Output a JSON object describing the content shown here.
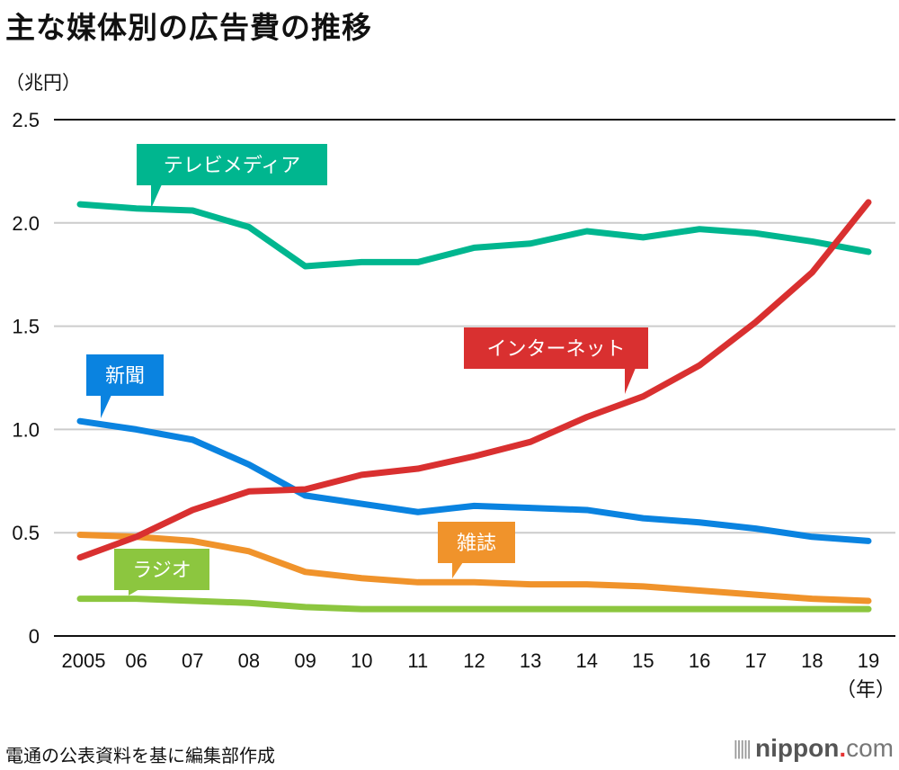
{
  "chart_data": {
    "type": "line",
    "title": "主な媒体別の広告費の推移",
    "ylabel": "（兆円）",
    "xlabel": "（年）",
    "ylim": [
      0,
      2.5
    ],
    "yticks": [
      {
        "value": 0,
        "label": "0"
      },
      {
        "value": 0.5,
        "label": "0.5"
      },
      {
        "value": 1.0,
        "label": "1.0"
      },
      {
        "value": 1.5,
        "label": "1.5"
      },
      {
        "value": 2.0,
        "label": "2.0"
      },
      {
        "value": 2.5,
        "label": "2.5"
      }
    ],
    "grid": true,
    "categories": [
      "2005",
      "06",
      "07",
      "08",
      "09",
      "10",
      "11",
      "12",
      "13",
      "14",
      "15",
      "16",
      "17",
      "18",
      "19"
    ],
    "series": [
      {
        "name": "テレビメディア",
        "color": "#00b68f",
        "values": [
          2.09,
          2.07,
          2.06,
          1.98,
          1.79,
          1.81,
          1.81,
          1.88,
          1.9,
          1.96,
          1.93,
          1.97,
          1.95,
          1.91,
          1.86
        ],
        "label_anchor_index": 1
      },
      {
        "name": "インターネット",
        "color": "#d93030",
        "values": [
          0.38,
          0.48,
          0.61,
          0.7,
          0.71,
          0.78,
          0.81,
          0.87,
          0.94,
          1.06,
          1.16,
          1.31,
          1.52,
          1.76,
          2.1
        ],
        "label_anchor_index": 10
      },
      {
        "name": "新聞",
        "color": "#0a83e0",
        "values": [
          1.04,
          1.0,
          0.95,
          0.83,
          0.68,
          0.64,
          0.6,
          0.63,
          0.62,
          0.61,
          0.57,
          0.55,
          0.52,
          0.48,
          0.46
        ],
        "label_anchor_index": 0
      },
      {
        "name": "雑誌",
        "color": "#f0932b",
        "values": [
          0.49,
          0.48,
          0.46,
          0.41,
          0.31,
          0.28,
          0.26,
          0.26,
          0.25,
          0.25,
          0.24,
          0.22,
          0.2,
          0.18,
          0.17
        ],
        "label_anchor_index": 7
      },
      {
        "name": "ラジオ",
        "color": "#8cc63f",
        "values": [
          0.18,
          0.18,
          0.17,
          0.16,
          0.14,
          0.13,
          0.13,
          0.13,
          0.13,
          0.13,
          0.13,
          0.13,
          0.13,
          0.13,
          0.13
        ],
        "label_anchor_index": 1
      }
    ]
  },
  "footer": {
    "source": "電通の公表資料を基に編集部作成",
    "brand_name": "nippon",
    "brand_dot": ".",
    "brand_tld": "com"
  }
}
